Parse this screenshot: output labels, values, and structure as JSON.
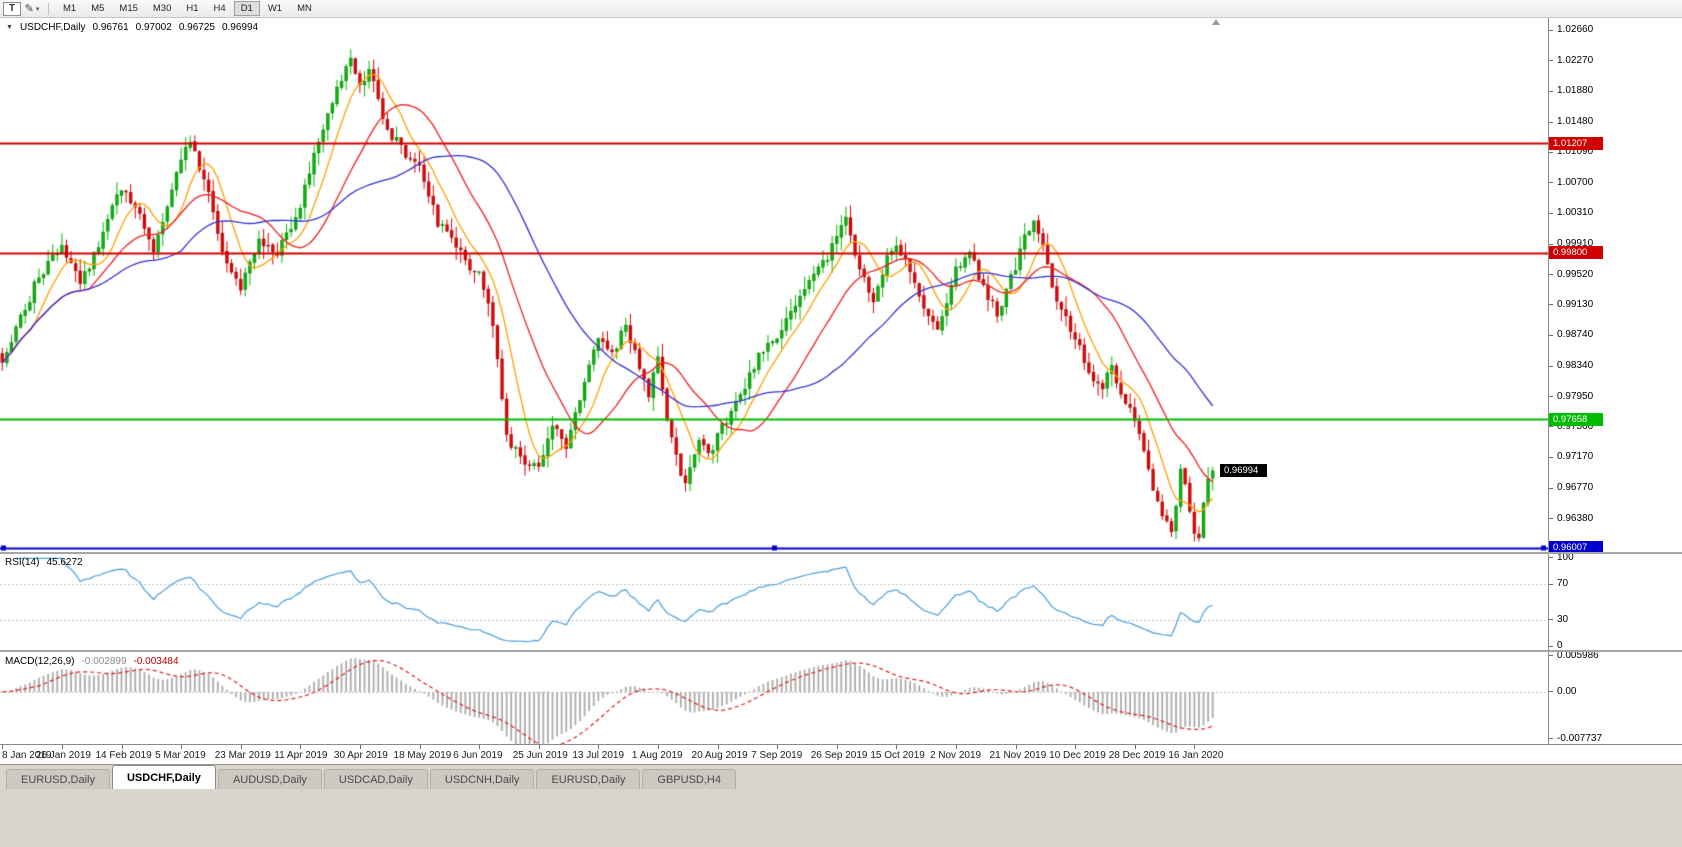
{
  "toolbar": {
    "text_tool_label": "T",
    "draw_tool_icon": "pencil",
    "timeframes": [
      "M1",
      "M5",
      "M15",
      "M30",
      "H1",
      "H4",
      "D1",
      "W1",
      "MN"
    ],
    "active_timeframe": "D1"
  },
  "chart": {
    "dropdown_marker": "▼",
    "title": "USDCHF,Daily",
    "open": "0.96761",
    "high": "0.97002",
    "low": "0.96725",
    "close": "0.96994",
    "price_axis_labels": [
      "1.02660",
      "1.02270",
      "1.01880",
      "1.01480",
      "1.01090",
      "1.00700",
      "1.00310",
      "0.99910",
      "0.99520",
      "0.99130",
      "0.98740",
      "0.98340",
      "0.97950",
      "0.97560",
      "0.97170",
      "0.96770",
      "0.96380"
    ],
    "x_labels": [
      "8 Jan 2019",
      "26 Jan 2019",
      "14 Feb 2019",
      "5 Mar 2019",
      "23 Mar 2019",
      "11 Apr 2019",
      "30 Apr 2019",
      "18 May 2019",
      "6 Jun 2019",
      "25 Jun 2019",
      "13 Jul 2019",
      "1 Aug 2019",
      "20 Aug 2019",
      "7 Sep 2019",
      "26 Sep 2019",
      "15 Oct 2019",
      "2 Nov 2019",
      "21 Nov 2019",
      "10 Dec 2019",
      "28 Dec 2019",
      "16 Jan 2020"
    ],
    "rsi": {
      "label": "RSI(14)",
      "value": "45.6272",
      "axis_labels": [
        "100",
        "70",
        "30",
        "0"
      ]
    },
    "macd": {
      "label": "MACD(12,26,9)",
      "value_main": "-0.002899",
      "value_signal": "-0.003484",
      "axis_labels": [
        "0.005986",
        "0.00",
        "-0.007737"
      ]
    }
  },
  "chart_data": {
    "type": "candlestick",
    "symbol": "USDCHF",
    "timeframe": "Daily",
    "bars": 265,
    "x_label_step": 13,
    "last_close": 0.96994,
    "price_domain": [
      0.9595,
      1.0282
    ],
    "rsi_domain": [
      -4,
      104
    ],
    "macd_domain": [
      -0.0086,
      0.0066
    ],
    "plot": {
      "data_width": 1215
    },
    "colors": {
      "up": "#00BB00",
      "down": "#E80000",
      "rsi": "#4AA0DC",
      "macd_hist": "#ABABAB",
      "macd_signal": "#E02020",
      "levels_dotted": "#C4C4C4"
    },
    "moving_averages": [
      {
        "period": 8,
        "color": "#FFA000"
      },
      {
        "period": 20,
        "color": "#F02020"
      },
      {
        "period": 40,
        "color": "#3535D0"
      }
    ],
    "hlines": [
      {
        "price": 1.01207,
        "label": "1.01207",
        "color": "#D00000",
        "width": 1.8
      },
      {
        "price": 0.998,
        "label": "0.99800",
        "color": "#D00000",
        "width": 1.8
      },
      {
        "price": 0.97658,
        "label": "0.97658",
        "color": "#00BB00",
        "width": 1.8
      },
      {
        "price": 0.96007,
        "label": "0.96007",
        "color": "#0000D0",
        "width": 2.2,
        "handles": true
      }
    ],
    "current_price": {
      "value": 0.96994,
      "label": "0.96994",
      "box_color": "#000000"
    },
    "rsi_levels": [
      70,
      30
    ],
    "indicator_values": {
      "rsi": 45.6272,
      "macd": -0.002899,
      "macd_signal": -0.003484
    },
    "close_anchors": [
      [
        0,
        0.9845
      ],
      [
        4,
        0.9895
      ],
      [
        8,
        0.995
      ],
      [
        13,
        0.9985
      ],
      [
        17,
        0.994
      ],
      [
        21,
        0.999
      ],
      [
        26,
        1.0065
      ],
      [
        30,
        1.003
      ],
      [
        33,
        0.9985
      ],
      [
        36,
        1.004
      ],
      [
        39,
        1.0105
      ],
      [
        41,
        1.0122
      ],
      [
        45,
        1.0055
      ],
      [
        49,
        0.9965
      ],
      [
        52,
        0.9935
      ],
      [
        56,
        1.0
      ],
      [
        60,
        0.998
      ],
      [
        65,
        1.004
      ],
      [
        69,
        1.0125
      ],
      [
        73,
        1.019
      ],
      [
        76,
        1.0225
      ],
      [
        78,
        1.0195
      ],
      [
        80,
        1.0215
      ],
      [
        84,
        1.014
      ],
      [
        88,
        1.0105
      ],
      [
        91,
        1.0095
      ],
      [
        95,
        1.002
      ],
      [
        99,
        0.9985
      ],
      [
        104,
        0.995
      ],
      [
        107,
        0.989
      ],
      [
        110,
        0.9745
      ],
      [
        113,
        0.9715
      ],
      [
        117,
        0.97
      ],
      [
        120,
        0.976
      ],
      [
        123,
        0.9725
      ],
      [
        126,
        0.9795
      ],
      [
        130,
        0.9875
      ],
      [
        133,
        0.985
      ],
      [
        136,
        0.9885
      ],
      [
        139,
        0.9835
      ],
      [
        141,
        0.98
      ],
      [
        143,
        0.984
      ],
      [
        145,
        0.976
      ],
      [
        147,
        0.9715
      ],
      [
        149,
        0.968
      ],
      [
        152,
        0.974
      ],
      [
        155,
        0.972
      ],
      [
        156,
        0.9745
      ],
      [
        159,
        0.9775
      ],
      [
        162,
        0.981
      ],
      [
        165,
        0.9845
      ],
      [
        169,
        0.9875
      ],
      [
        172,
        0.9905
      ],
      [
        176,
        0.994
      ],
      [
        179,
        0.9965
      ],
      [
        182,
        1.0
      ],
      [
        184,
        1.0025
      ],
      [
        187,
        0.996
      ],
      [
        190,
        0.9915
      ],
      [
        193,
        0.997
      ],
      [
        195,
        0.999
      ],
      [
        198,
        0.9955
      ],
      [
        201,
        0.991
      ],
      [
        204,
        0.9885
      ],
      [
        206,
        0.992
      ],
      [
        208,
        0.996
      ],
      [
        211,
        0.9985
      ],
      [
        214,
        0.9935
      ],
      [
        217,
        0.99
      ],
      [
        219,
        0.9935
      ],
      [
        221,
        0.996
      ],
      [
        223,
        1.0
      ],
      [
        225,
        1.002
      ],
      [
        227,
        0.9985
      ],
      [
        230,
        0.992
      ],
      [
        234,
        0.987
      ],
      [
        237,
        0.983
      ],
      [
        240,
        0.98
      ],
      [
        242,
        0.984
      ],
      [
        244,
        0.9795
      ],
      [
        247,
        0.977
      ],
      [
        249,
        0.972
      ],
      [
        251,
        0.9675
      ],
      [
        253,
        0.9645
      ],
      [
        255,
        0.962
      ],
      [
        256,
        0.966
      ],
      [
        257,
        0.97
      ],
      [
        258,
        0.968
      ],
      [
        259,
        0.9645
      ],
      [
        260,
        0.9625
      ],
      [
        261,
        0.9615
      ],
      [
        262,
        0.9655
      ],
      [
        263,
        0.9685
      ],
      [
        264,
        0.96994
      ]
    ]
  },
  "tabs": {
    "active_index": 1,
    "items": [
      "EURUSD,Daily",
      "USDCHF,Daily",
      "AUDUSD,Daily",
      "USDCAD,Daily",
      "USDCNH,Daily",
      "EURUSD,Daily",
      "GBPUSD,H4"
    ]
  }
}
